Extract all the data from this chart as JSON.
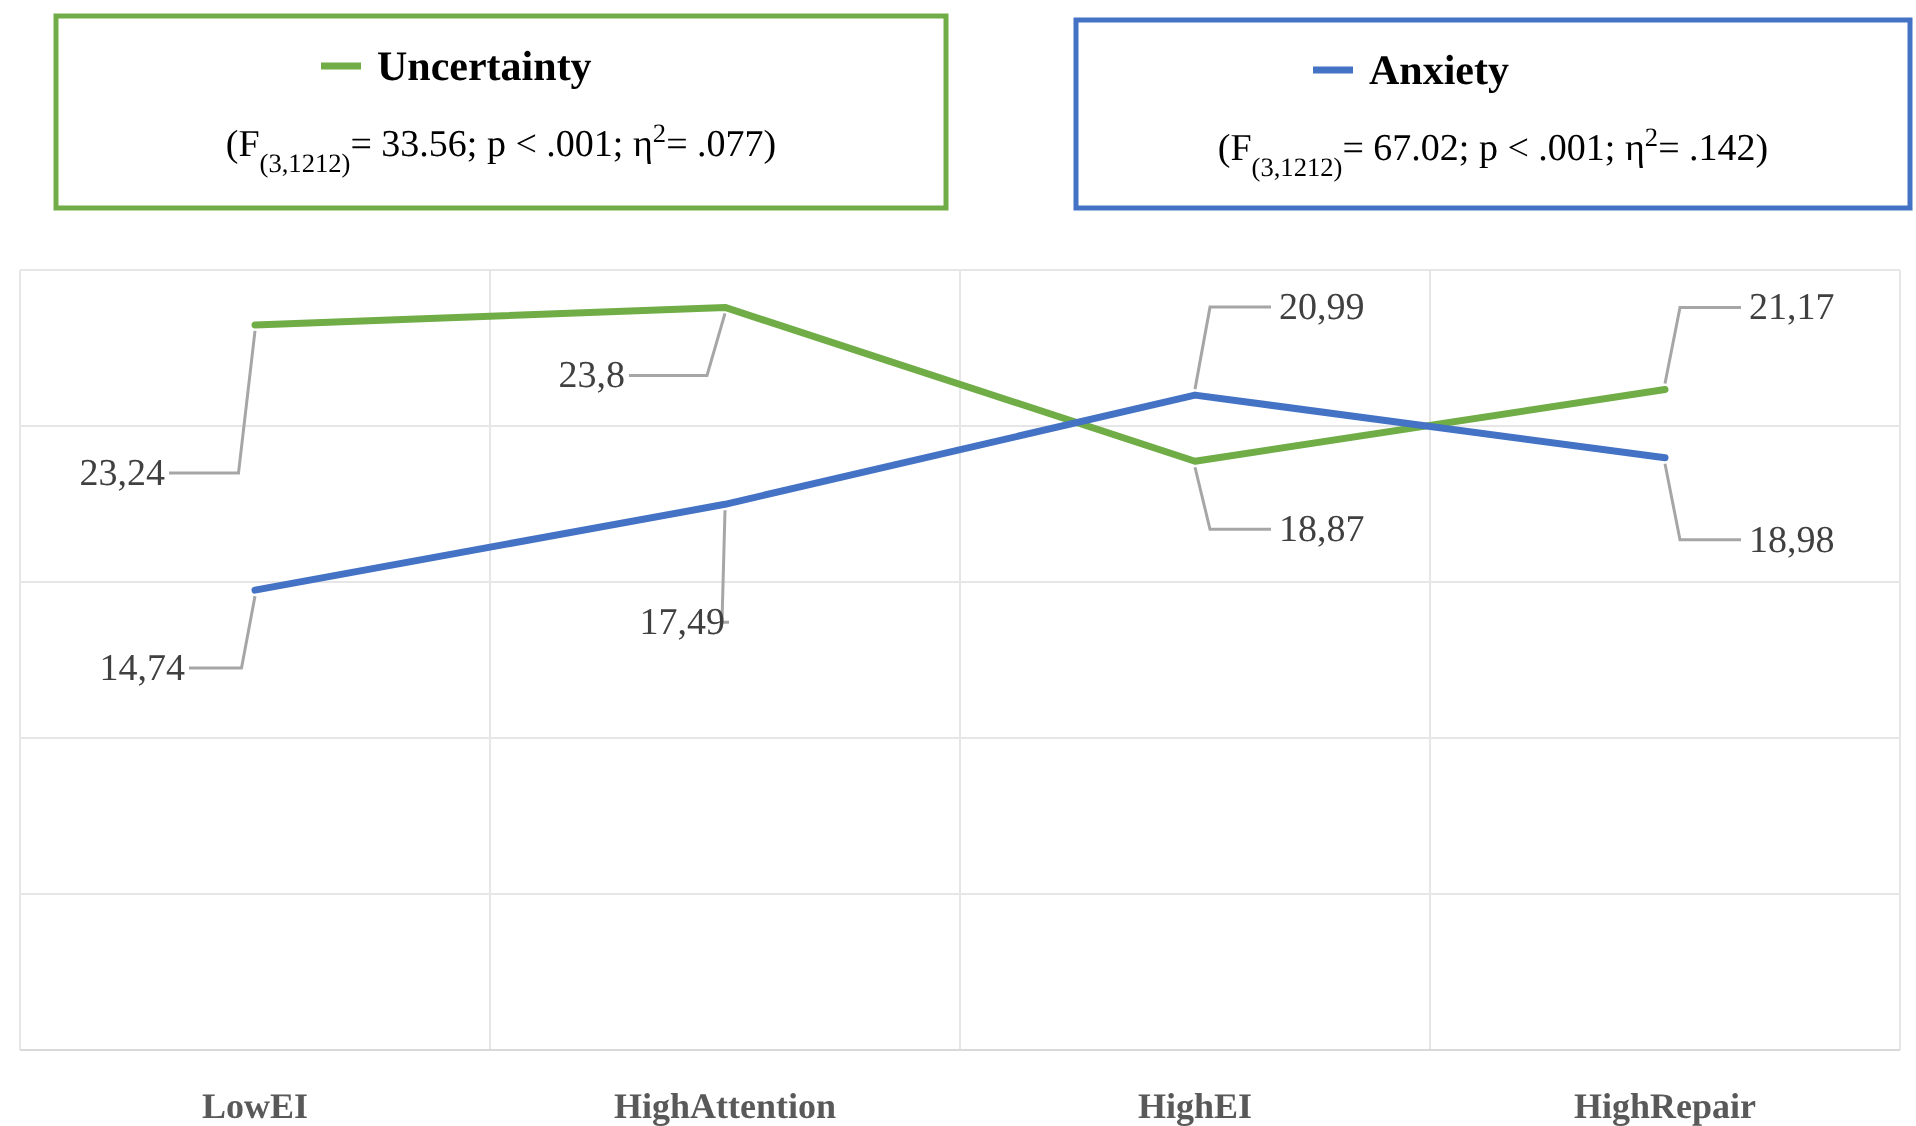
{
  "chart_data": {
    "type": "line",
    "categories": [
      "LowEI",
      "HighAttention",
      "HighEI",
      "HighRepair"
    ],
    "series": [
      {
        "name": "Uncertainty",
        "color": "#70ad47",
        "values": [
          23.24,
          23.8,
          18.87,
          21.17
        ],
        "value_labels": [
          "23,24",
          "23,8",
          "18,87",
          "21,17"
        ]
      },
      {
        "name": "Anxiety",
        "color": "#4472c4",
        "values": [
          14.74,
          17.49,
          20.99,
          18.98
        ],
        "value_labels": [
          "14,74",
          "17,49",
          "20,99",
          "18,98"
        ]
      }
    ],
    "annotations": [
      "(F$_{(3,1212)}$= 33.56; p < .001; η$^{2}$= .077)",
      "(F$_{(3,1212)}$= 67.02; p < .001; η$^{2}$= .142)"
    ],
    "ylim": [
      0,
      25
    ],
    "yticks": [
      {
        "value": 0,
        "label": null
      },
      {
        "value": 5,
        "label": null
      },
      {
        "value": 10,
        "label": null
      },
      {
        "value": 15,
        "label": null
      },
      {
        "value": 20,
        "label": null
      },
      {
        "value": 25,
        "label": null
      }
    ],
    "tick_labels": "x",
    "grid": true,
    "legend": "top",
    "marker": "none",
    "line_style": "solid"
  }
}
